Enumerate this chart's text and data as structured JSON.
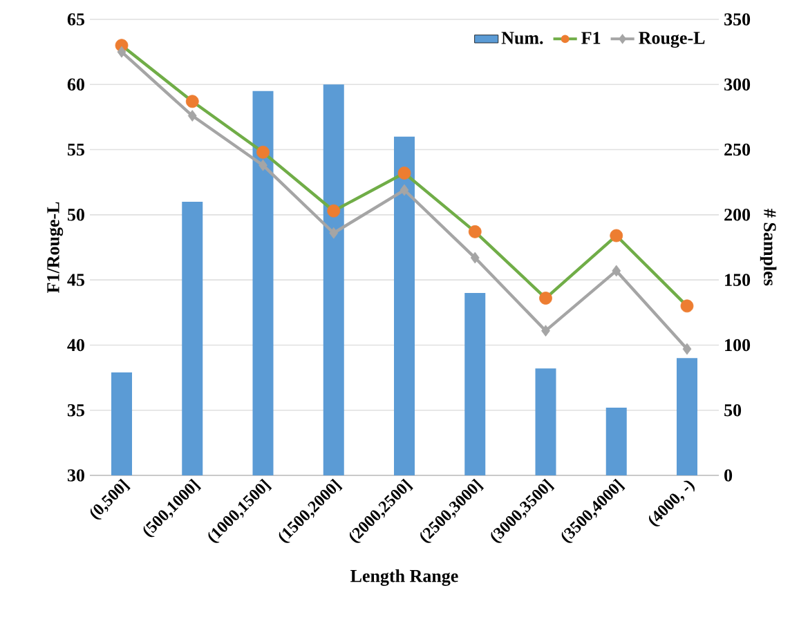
{
  "chart_data": {
    "type": "bar",
    "xlabel": "Length Range",
    "ylabel": "F1/Rouge-L",
    "y2label": "# Samples",
    "categories": [
      "(0,500]",
      "(500,1000]",
      "(1000,1500]",
      "(1500,2000]",
      "(2000,2500]",
      "(2500,3000]",
      "(3000,3500]",
      "(3500,4000]",
      "(4000, -)"
    ],
    "series": [
      {
        "name": "Num.",
        "axis": "y2",
        "color": "#5b9bd5",
        "values": [
          79,
          210,
          295,
          300,
          260,
          140,
          82,
          52,
          90
        ]
      },
      {
        "name": "F1",
        "type": "line",
        "color": "#70ad47",
        "marker": "circle",
        "colors": [
          "#ed7d31",
          "#ed7d31",
          "#ed7d31",
          "#ed7d31",
          "#ed7d31",
          "#ed7d31",
          "#ed7d31",
          "#ed7d31",
          "#ed7d31"
        ],
        "values": [
          63.0,
          58.7,
          54.8,
          50.3,
          53.2,
          48.7,
          43.6,
          48.4,
          43.0
        ]
      },
      {
        "name": "Rouge-L",
        "type": "line",
        "color": "#a5a5a5",
        "marker": "diamond",
        "values": [
          62.5,
          57.6,
          53.8,
          48.6,
          51.9,
          46.7,
          41.1,
          45.7,
          39.7
        ]
      }
    ],
    "ylim": [
      30,
      65
    ],
    "yticks": [
      30,
      35,
      40,
      45,
      50,
      55,
      60,
      65
    ],
    "y2lim": [
      0,
      350
    ],
    "y2ticks": [
      0,
      50,
      100,
      150,
      200,
      250,
      300,
      350
    ],
    "grid": "y",
    "legend": "top right"
  }
}
